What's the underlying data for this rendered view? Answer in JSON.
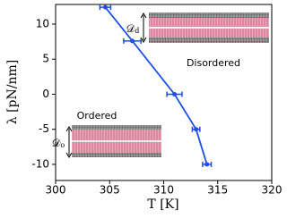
{
  "chart_data": {
    "type": "line",
    "x": [
      304.6,
      307.1,
      311.0,
      313.0,
      314.0
    ],
    "series": [
      {
        "color": "#1f4fe6",
        "values": [
          12.4,
          7.6,
          0,
          -5,
          -10
        ],
        "xerr": [
          0.5,
          0.8,
          0.7,
          0.35,
          0.4
        ]
      }
    ],
    "xlim": [
      300,
      320
    ],
    "xticks": [
      300,
      305,
      310,
      315,
      320
    ],
    "ylim": [
      -12.3,
      12.8
    ],
    "yticks": [
      -10,
      -5,
      0,
      5,
      10
    ],
    "x_label": "T [K]",
    "y_label": "λ [pN/nm]",
    "annotations": [
      {
        "text": "Disordered",
        "symbol": "𝒟",
        "subscript": "d"
      },
      {
        "text": "Ordered",
        "symbol": "𝒟",
        "subscript": "o"
      }
    ]
  }
}
